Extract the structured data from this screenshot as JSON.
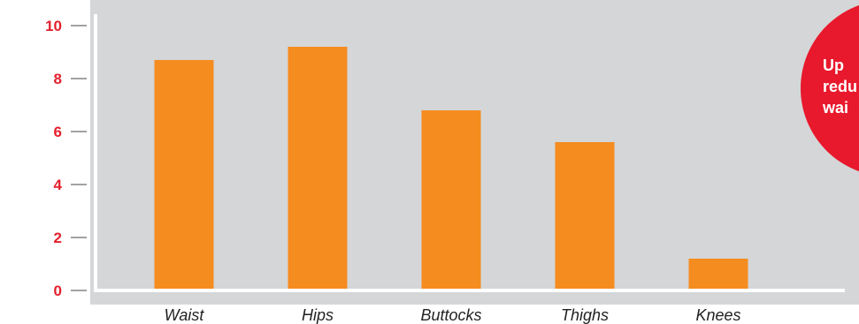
{
  "chart_data": {
    "type": "bar",
    "categories": [
      "Waist",
      "Hips",
      "Buttocks",
      "Thighs",
      "Knees"
    ],
    "values": [
      8.7,
      9.2,
      6.8,
      5.6,
      1.2
    ],
    "ylim": [
      0,
      10
    ],
    "yticks": [
      0,
      2,
      4,
      6,
      8,
      10
    ],
    "grid": false,
    "bar_color": "#f58c1f",
    "tick_color": "#e3202c",
    "axis_color": "#ffffff",
    "background_color": "#d4d6d8"
  },
  "callout": {
    "lines": [
      "Up",
      "redu",
      "wai"
    ],
    "color": "#e8192c"
  }
}
